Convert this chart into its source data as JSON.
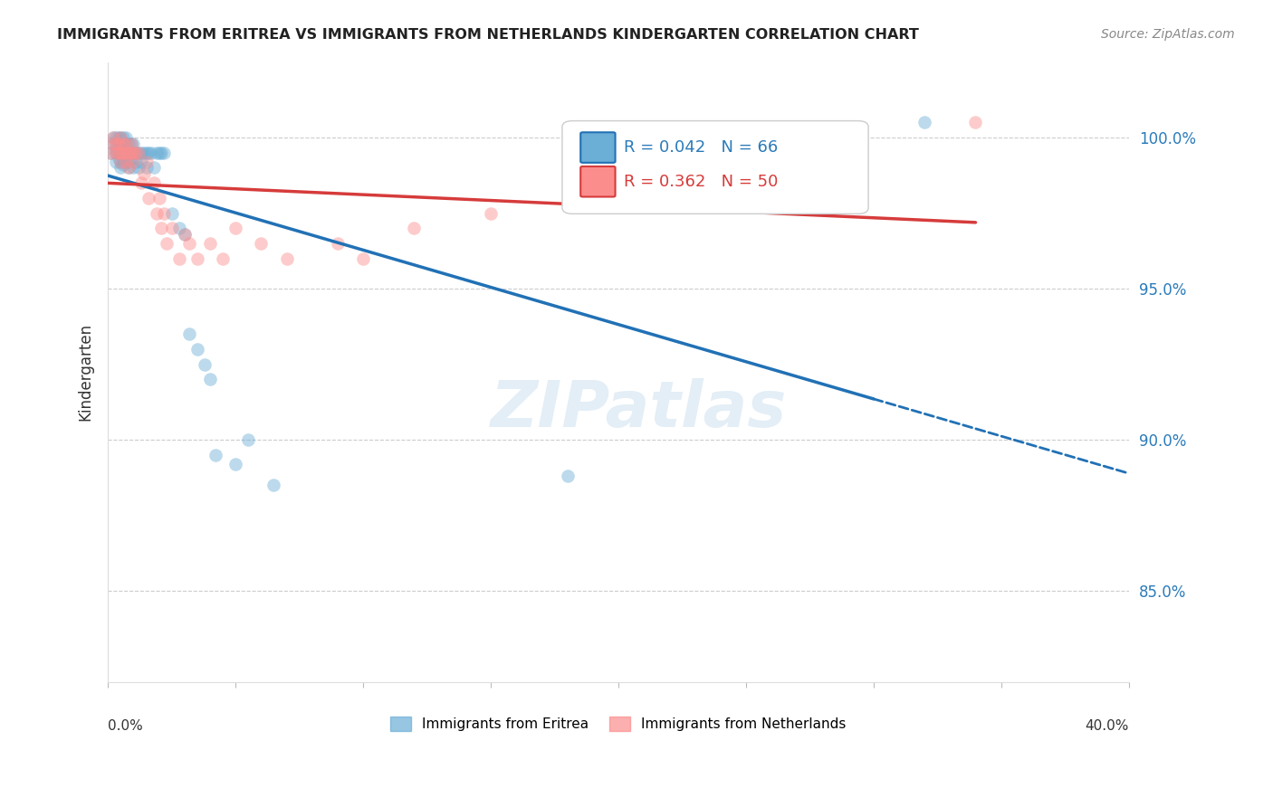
{
  "title": "IMMIGRANTS FROM ERITREA VS IMMIGRANTS FROM NETHERLANDS KINDERGARTEN CORRELATION CHART",
  "source": "Source: ZipAtlas.com",
  "ylabel": "Kindergarten",
  "ytick_labels": [
    "100.0%",
    "95.0%",
    "90.0%",
    "85.0%"
  ],
  "ytick_values": [
    100.0,
    95.0,
    90.0,
    85.0
  ],
  "legend1_label": "Immigrants from Eritrea",
  "legend2_label": "Immigrants from Netherlands",
  "R_eritrea": 0.042,
  "N_eritrea": 66,
  "R_netherlands": 0.362,
  "N_netherlands": 50,
  "color_eritrea": "#6baed6",
  "color_netherlands": "#fc8d8d",
  "color_eritrea_line": "#2171b5",
  "color_netherlands_line": "#d63b3b",
  "xlim": [
    0.0,
    0.4
  ],
  "ylim": [
    82.0,
    102.5
  ],
  "eritrea_x": [
    0.001,
    0.002,
    0.002,
    0.003,
    0.003,
    0.003,
    0.003,
    0.003,
    0.004,
    0.004,
    0.004,
    0.004,
    0.005,
    0.005,
    0.005,
    0.005,
    0.005,
    0.005,
    0.006,
    0.006,
    0.006,
    0.006,
    0.006,
    0.007,
    0.007,
    0.007,
    0.007,
    0.008,
    0.008,
    0.008,
    0.008,
    0.009,
    0.009,
    0.009,
    0.01,
    0.01,
    0.01,
    0.011,
    0.011,
    0.012,
    0.012,
    0.013,
    0.013,
    0.014,
    0.015,
    0.015,
    0.016,
    0.017,
    0.018,
    0.019,
    0.02,
    0.021,
    0.022,
    0.025,
    0.028,
    0.03,
    0.032,
    0.035,
    0.038,
    0.04,
    0.042,
    0.05,
    0.055,
    0.065,
    0.18,
    0.32
  ],
  "eritrea_y": [
    99.5,
    100.0,
    99.8,
    99.5,
    99.2,
    99.8,
    100.0,
    99.6,
    99.5,
    99.8,
    100.0,
    99.3,
    99.5,
    99.8,
    100.0,
    99.2,
    99.6,
    99.0,
    99.5,
    99.8,
    100.0,
    99.3,
    99.1,
    99.5,
    99.8,
    99.2,
    100.0,
    99.5,
    99.8,
    99.2,
    99.0,
    99.5,
    99.8,
    99.3,
    99.5,
    99.0,
    99.8,
    99.5,
    99.2,
    99.5,
    99.0,
    99.5,
    99.2,
    99.5,
    99.5,
    99.0,
    99.5,
    99.5,
    99.0,
    99.5,
    99.5,
    99.5,
    99.5,
    97.5,
    97.0,
    96.8,
    93.5,
    93.0,
    92.5,
    92.0,
    89.5,
    89.2,
    90.0,
    88.5,
    88.8,
    100.5
  ],
  "netherlands_x": [
    0.001,
    0.002,
    0.002,
    0.003,
    0.003,
    0.004,
    0.004,
    0.005,
    0.005,
    0.005,
    0.006,
    0.006,
    0.007,
    0.007,
    0.007,
    0.008,
    0.008,
    0.009,
    0.009,
    0.01,
    0.01,
    0.011,
    0.012,
    0.013,
    0.014,
    0.015,
    0.016,
    0.018,
    0.019,
    0.02,
    0.021,
    0.022,
    0.023,
    0.025,
    0.028,
    0.03,
    0.032,
    0.035,
    0.04,
    0.045,
    0.05,
    0.06,
    0.07,
    0.09,
    0.1,
    0.12,
    0.15,
    0.2,
    0.28,
    0.34
  ],
  "netherlands_y": [
    99.5,
    100.0,
    99.8,
    99.5,
    99.8,
    99.5,
    99.8,
    99.5,
    100.0,
    99.2,
    99.5,
    99.8,
    99.5,
    99.8,
    99.2,
    99.5,
    99.0,
    99.5,
    99.8,
    99.5,
    99.2,
    99.5,
    99.5,
    98.5,
    98.8,
    99.2,
    98.0,
    98.5,
    97.5,
    98.0,
    97.0,
    97.5,
    96.5,
    97.0,
    96.0,
    96.8,
    96.5,
    96.0,
    96.5,
    96.0,
    97.0,
    96.5,
    96.0,
    96.5,
    96.0,
    97.0,
    97.5,
    97.8,
    98.0,
    100.5
  ]
}
